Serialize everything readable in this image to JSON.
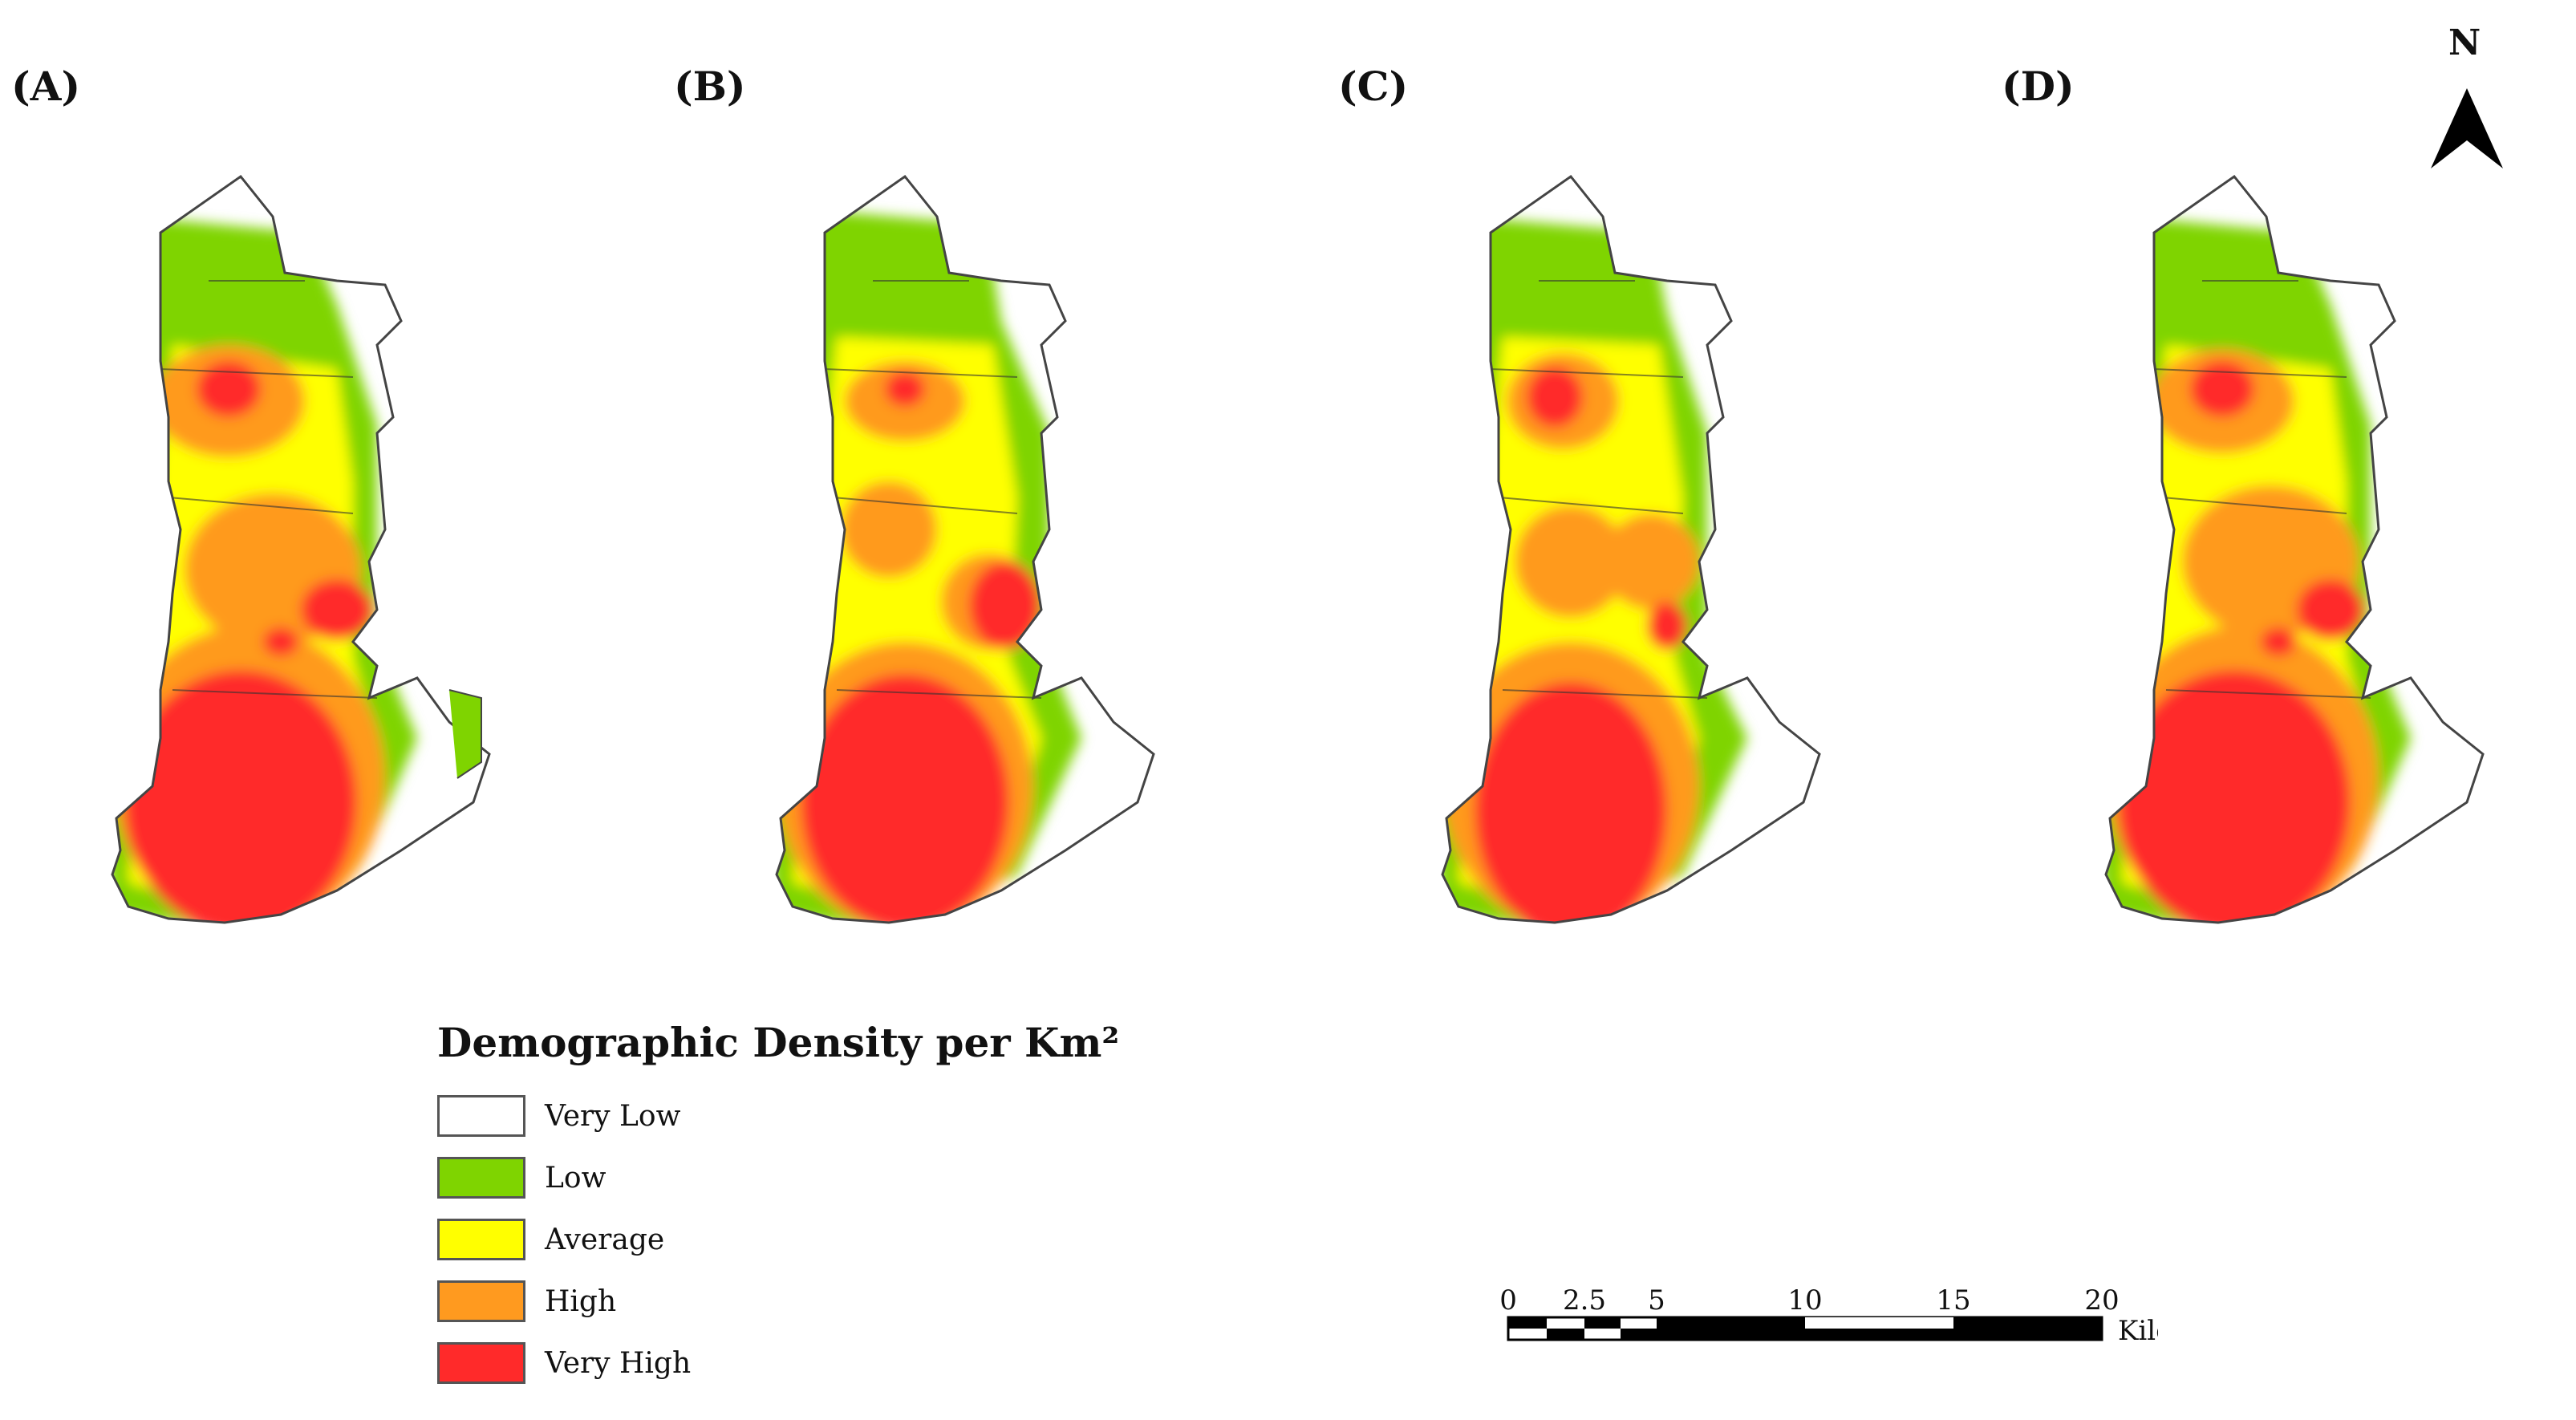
{
  "panels": [
    {
      "label": "(A)"
    },
    {
      "label": "(B)"
    },
    {
      "label": "(C)"
    },
    {
      "label": "(D)"
    }
  ],
  "north_arrow": {
    "letter": "N",
    "icon": "north-arrow-icon"
  },
  "legend": {
    "title": "Demographic Density per Km²",
    "classes": [
      {
        "label": "Very Low",
        "color": "#ffffff"
      },
      {
        "label": "Low",
        "color": "#7fd400"
      },
      {
        "label": "Average",
        "color": "#ffff00"
      },
      {
        "label": "High",
        "color": "#ff9a1f"
      },
      {
        "label": "Very High",
        "color": "#ff2a2a"
      }
    ]
  },
  "scale_bar": {
    "ticks": [
      "0",
      "2.5",
      "5",
      "10",
      "15",
      "20"
    ],
    "unit": "Kilometers"
  }
}
